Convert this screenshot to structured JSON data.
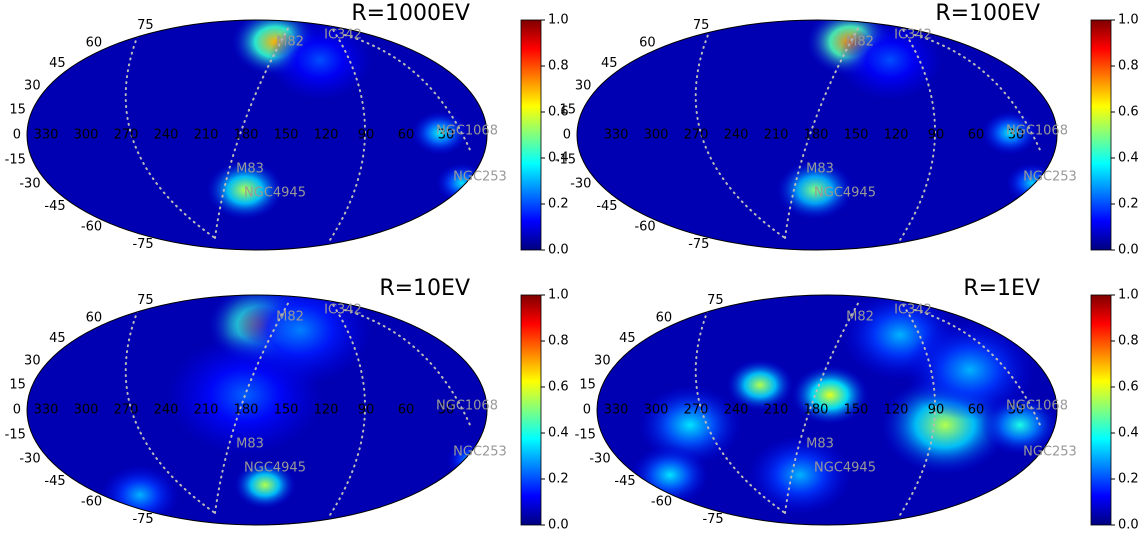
{
  "chart_data": [
    {
      "type": "skymap",
      "title": "R=1000EV",
      "colormap": "jet",
      "lon_ticks": [
        330,
        300,
        270,
        240,
        210,
        180,
        150,
        120,
        90,
        60,
        30
      ],
      "lat_ticks": [
        75,
        60,
        45,
        30,
        15,
        0,
        -15,
        -30,
        -45,
        -60,
        -75
      ],
      "sources": [
        "M82",
        "IC342",
        "NGC1068",
        "NGC253",
        "M83",
        "NGC4945"
      ],
      "zlim": [
        0,
        1
      ],
      "zticks": [
        {
          "value": 0,
          "label": "0.0"
        },
        {
          "value": 0.2,
          "label": "0.2"
        },
        {
          "value": 0.4,
          "label": "0.4"
        },
        {
          "value": 0.6,
          "label": "0.6"
        },
        {
          "value": 0.8,
          "label": "0.8"
        },
        {
          "value": 1,
          "label": "1.0"
        }
      ]
    },
    {
      "type": "skymap",
      "title": "R=100EV",
      "colormap": "jet",
      "lon_ticks": [
        330,
        300,
        270,
        240,
        210,
        180,
        150,
        120,
        90,
        60,
        30
      ],
      "lat_ticks": [
        75,
        60,
        45,
        30,
        15,
        0,
        -15,
        -30,
        -45,
        -60,
        -75
      ],
      "sources": [
        "M82",
        "IC342",
        "NGC1068",
        "NGC253",
        "M83",
        "NGC4945"
      ],
      "zlim": [
        0,
        1
      ],
      "zticks": [
        {
          "value": 0,
          "label": "0.0"
        },
        {
          "value": 0.2,
          "label": "0.2"
        },
        {
          "value": 0.4,
          "label": "0.4"
        },
        {
          "value": 0.6,
          "label": "0.6"
        },
        {
          "value": 0.8,
          "label": "0.8"
        },
        {
          "value": 1,
          "label": "1.0"
        }
      ]
    },
    {
      "type": "skymap",
      "title": "R=10EV",
      "colormap": "jet",
      "lon_ticks": [
        330,
        300,
        270,
        240,
        210,
        180,
        150,
        120,
        90,
        60,
        30
      ],
      "lat_ticks": [
        75,
        60,
        45,
        30,
        15,
        0,
        -15,
        -30,
        -45,
        -60,
        -75
      ],
      "sources": [
        "M82",
        "IC342",
        "NGC1068",
        "NGC253",
        "M83",
        "NGC4945"
      ],
      "zlim": [
        0,
        1
      ],
      "zticks": [
        {
          "value": 0,
          "label": "0.0"
        },
        {
          "value": 0.2,
          "label": "0.2"
        },
        {
          "value": 0.4,
          "label": "0.4"
        },
        {
          "value": 0.6,
          "label": "0.6"
        },
        {
          "value": 0.8,
          "label": "0.8"
        },
        {
          "value": 1,
          "label": "1.0"
        }
      ]
    },
    {
      "type": "skymap",
      "title": "R=1EV",
      "colormap": "jet",
      "lon_ticks": [
        330,
        300,
        270,
        240,
        210,
        180,
        150,
        120,
        90,
        60,
        30
      ],
      "lat_ticks": [
        75,
        60,
        45,
        30,
        15,
        0,
        -15,
        -30,
        -45,
        -60,
        -75
      ],
      "sources": [
        "M82",
        "IC342",
        "NGC1068",
        "NGC253",
        "M83",
        "NGC4945"
      ],
      "zlim": [
        0,
        1
      ],
      "zticks": [
        {
          "value": 0,
          "label": "0.0"
        },
        {
          "value": 0.2,
          "label": "0.2"
        },
        {
          "value": 0.4,
          "label": "0.4"
        },
        {
          "value": 0.6,
          "label": "0.6"
        },
        {
          "value": 0.8,
          "label": "0.8"
        },
        {
          "value": 1,
          "label": "1.0"
        }
      ]
    }
  ]
}
